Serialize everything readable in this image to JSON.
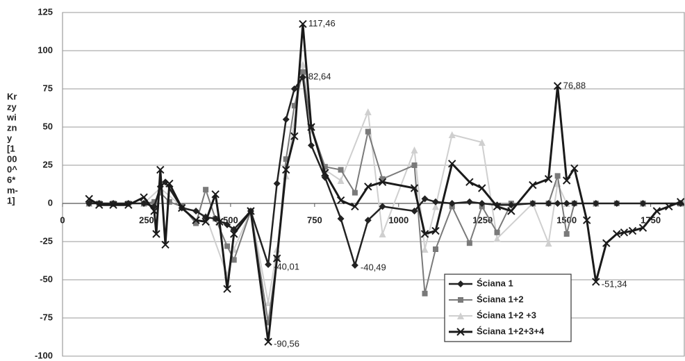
{
  "chart_data": {
    "type": "line",
    "y_label_lines": [
      "Kr",
      "zy",
      "wi",
      "zn",
      "y",
      "[1",
      "00",
      "0^",
      "6*",
      "m-",
      "1]"
    ],
    "xlim": [
      0,
      1850
    ],
    "xticks": [
      0,
      250,
      500,
      750,
      1000,
      1250,
      1500,
      1750
    ],
    "ylim": [
      -100,
      125
    ],
    "yticks": [
      -100,
      -75,
      -50,
      -25,
      0,
      25,
      50,
      75,
      100,
      125
    ],
    "grid": true,
    "legend": "lower right",
    "series": [
      {
        "name": "Ściana 1",
        "color": "#222222",
        "marker": "diamond",
        "x": [
          79,
          109,
          151,
          196,
          242,
          273,
          291,
          306,
          355,
          397,
          426,
          455,
          490,
          510,
          560,
          612,
          638,
          665,
          690,
          715,
          740,
          781,
          828,
          870,
          909,
          952,
          1047,
          1078,
          1110,
          1159,
          1211,
          1248,
          1293,
          1335,
          1399,
          1446,
          1473,
          1500,
          1523,
          1587,
          1649,
          1727,
          1839
        ],
        "values": [
          0,
          0,
          0,
          0,
          0,
          -2,
          11,
          14,
          -3,
          -5,
          -9,
          -10,
          -14,
          -17,
          -5,
          -40.01,
          13,
          55,
          75,
          82.64,
          38,
          17,
          -10,
          -40.49,
          -11,
          -2,
          -5,
          3,
          1,
          0,
          1,
          0,
          -1,
          -1,
          0,
          0,
          0,
          0,
          0,
          0,
          0,
          0,
          0
        ],
        "value_labels": [
          null,
          null,
          null,
          null,
          null,
          null,
          null,
          null,
          null,
          null,
          null,
          null,
          null,
          null,
          null,
          "-40,01",
          null,
          null,
          null,
          "82,64",
          null,
          null,
          null,
          "-40,49",
          null,
          null,
          null,
          null,
          null,
          null,
          null,
          null,
          null,
          null,
          null,
          null,
          null,
          null,
          null,
          null,
          null,
          null,
          null
        ]
      },
      {
        "name": "Ściana 1+2",
        "color": "#7a7a7a",
        "marker": "square",
        "x": [
          79,
          109,
          151,
          196,
          242,
          273,
          291,
          318,
          355,
          397,
          426,
          455,
          490,
          510,
          560,
          612,
          638,
          665,
          690,
          715,
          740,
          781,
          828,
          870,
          909,
          952,
          1047,
          1078,
          1110,
          1159,
          1211,
          1248,
          1293,
          1335,
          1399,
          1446,
          1473,
          1500,
          1523,
          1587,
          1649,
          1727,
          1839
        ],
        "values": [
          0,
          0,
          0,
          0,
          0,
          1,
          7,
          1,
          -2,
          -13,
          9,
          -10,
          -28,
          -37,
          -5,
          -78,
          -36,
          29,
          64,
          86,
          50,
          24,
          22,
          7,
          47,
          16,
          25,
          -59,
          -30,
          -2,
          -26,
          -2,
          -19,
          0,
          0,
          0,
          18,
          -20,
          0,
          0,
          0,
          0,
          0
        ]
      },
      {
        "name": "Ściana 1+2 +3",
        "color": "#cfcfcf",
        "marker": "triangle",
        "x": [
          79,
          151,
          242,
          291,
          355,
          426,
          490,
          510,
          560,
          612,
          638,
          665,
          715,
          740,
          781,
          828,
          909,
          952,
          1047,
          1078,
          1110,
          1159,
          1248,
          1293,
          1399,
          1446,
          1473,
          1500,
          1587,
          1727,
          1839
        ],
        "values": [
          0,
          0,
          0,
          10,
          -2,
          -8,
          -47,
          -30,
          -5,
          -65,
          -30,
          18,
          91,
          48,
          22,
          15,
          60,
          -20,
          35,
          -30,
          -2,
          45,
          40,
          -23,
          0,
          -26,
          13,
          0,
          0,
          0,
          0
        ]
      },
      {
        "name": "Ściana 1+2+3+4",
        "color": "#1a1a1a",
        "marker": "x",
        "x": [
          79,
          109,
          151,
          196,
          242,
          273,
          279,
          291,
          306,
          318,
          355,
          397,
          426,
          455,
          467,
          490,
          510,
          560,
          612,
          638,
          665,
          690,
          715,
          740,
          781,
          828,
          870,
          909,
          952,
          1047,
          1078,
          1110,
          1159,
          1211,
          1248,
          1293,
          1335,
          1399,
          1446,
          1473,
          1500,
          1523,
          1560,
          1587,
          1618,
          1649,
          1671,
          1696,
          1727,
          1768,
          1804,
          1839
        ],
        "values": [
          3,
          -1,
          -1,
          -1,
          4,
          -5,
          -20,
          22,
          -27,
          13,
          -3,
          -11,
          -12,
          6,
          -12,
          -56,
          -20,
          -5,
          -90.56,
          -36,
          22,
          44,
          117.46,
          50,
          20,
          2,
          -2,
          11,
          14,
          10,
          -20,
          -18,
          26,
          14,
          10,
          -2,
          -5,
          12,
          16,
          76.88,
          15,
          23,
          -11,
          -51.34,
          -26,
          -20,
          -19,
          -18,
          -16,
          -5,
          -2,
          1
        ],
        "value_labels": [
          null,
          null,
          null,
          null,
          null,
          null,
          null,
          null,
          null,
          null,
          null,
          null,
          null,
          null,
          null,
          null,
          null,
          null,
          "-90,56",
          null,
          null,
          null,
          "117,46",
          null,
          null,
          null,
          null,
          null,
          null,
          null,
          null,
          null,
          null,
          null,
          null,
          null,
          null,
          null,
          null,
          "76,88",
          null,
          null,
          null,
          "-51,34",
          null,
          null,
          null,
          null,
          null,
          null,
          null,
          null
        ]
      }
    ]
  }
}
